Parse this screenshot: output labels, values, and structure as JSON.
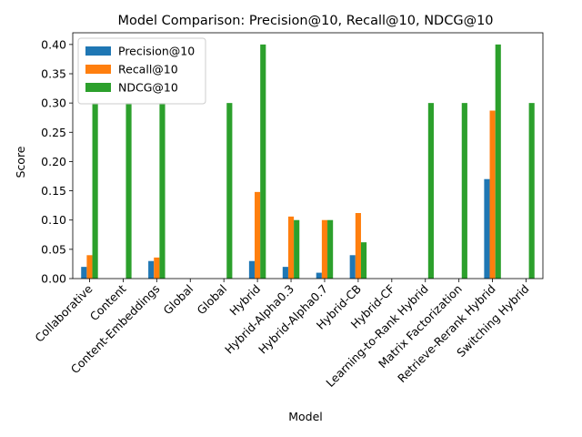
{
  "chart_data": {
    "type": "bar",
    "title": "Model Comparison: Precision@10, Recall@10, NDCG@10",
    "xlabel": "Model",
    "ylabel": "Score",
    "ylim": [
      0,
      0.42
    ],
    "yticks": [
      "0.00",
      "0.05",
      "0.10",
      "0.15",
      "0.20",
      "0.25",
      "0.30",
      "0.35",
      "0.40"
    ],
    "grid": false,
    "legend_position": "top-left",
    "categories": [
      "Collaborative",
      "Content",
      "Content-Embeddings",
      "Global",
      "Global",
      "Hybrid",
      "Hybrid-Alpha0.3",
      "Hybrid-Alpha0.7",
      "Hybrid-CB",
      "Hybrid-CF",
      "Learning-to-Rank Hybrid",
      "Matrix Factorization",
      "Retrieve-Rerank Hybrid",
      "Switching Hybrid"
    ],
    "series": [
      {
        "name": "Precision@10",
        "color": "#1f77b4",
        "values": [
          0.02,
          0,
          0.03,
          0,
          0,
          0.03,
          0.02,
          0.01,
          0.04,
          0,
          0,
          0,
          0.17,
          0
        ]
      },
      {
        "name": "Recall@10",
        "color": "#ff7f0e",
        "values": [
          0.04,
          0,
          0.036,
          0,
          0,
          0.148,
          0.106,
          0.1,
          0.112,
          0,
          0,
          0,
          0.287,
          0
        ]
      },
      {
        "name": "NDCG@10",
        "color": "#2ca02c",
        "values": [
          0.3,
          0.3,
          0.3,
          0,
          0.3,
          0.4,
          0.1,
          0.1,
          0.062,
          0,
          0.3,
          0.3,
          0.4,
          0.3
        ]
      }
    ]
  }
}
